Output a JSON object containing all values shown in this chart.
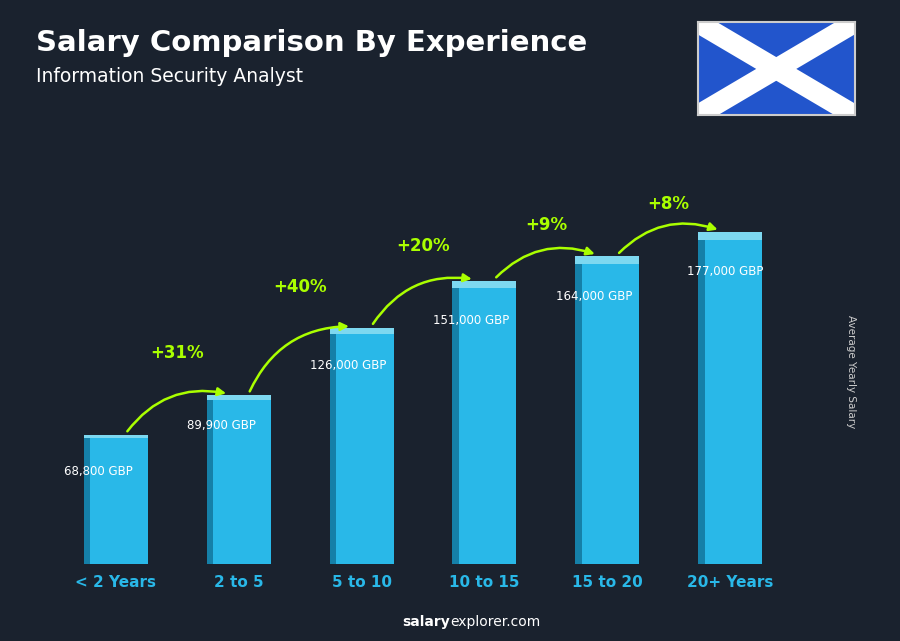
{
  "title": "Salary Comparison By Experience",
  "subtitle": "Information Security Analyst",
  "categories": [
    "< 2 Years",
    "2 to 5",
    "5 to 10",
    "10 to 15",
    "15 to 20",
    "20+ Years"
  ],
  "values": [
    68800,
    89900,
    126000,
    151000,
    164000,
    177000
  ],
  "value_labels": [
    "68,800 GBP",
    "89,900 GBP",
    "126,000 GBP",
    "151,000 GBP",
    "164,000 GBP",
    "177,000 GBP"
  ],
  "pct_labels": [
    "+31%",
    "+40%",
    "+20%",
    "+9%",
    "+8%"
  ],
  "bar_face_color": "#29b8e8",
  "bar_left_color": "#1580a8",
  "bar_top_color": "#7dd8f0",
  "bg_color": "#1a222e",
  "title_color": "#ffffff",
  "subtitle_color": "#ffffff",
  "value_label_color": "#ffffff",
  "pct_color": "#aaff00",
  "xlabel_color": "#29b8e8",
  "ylabel": "Average Yearly Salary",
  "footer_normal": "explorer.com",
  "footer_bold": "salary",
  "ylim_max": 205000,
  "flag_blue": "#2255cc",
  "flag_border": "#cccccc"
}
